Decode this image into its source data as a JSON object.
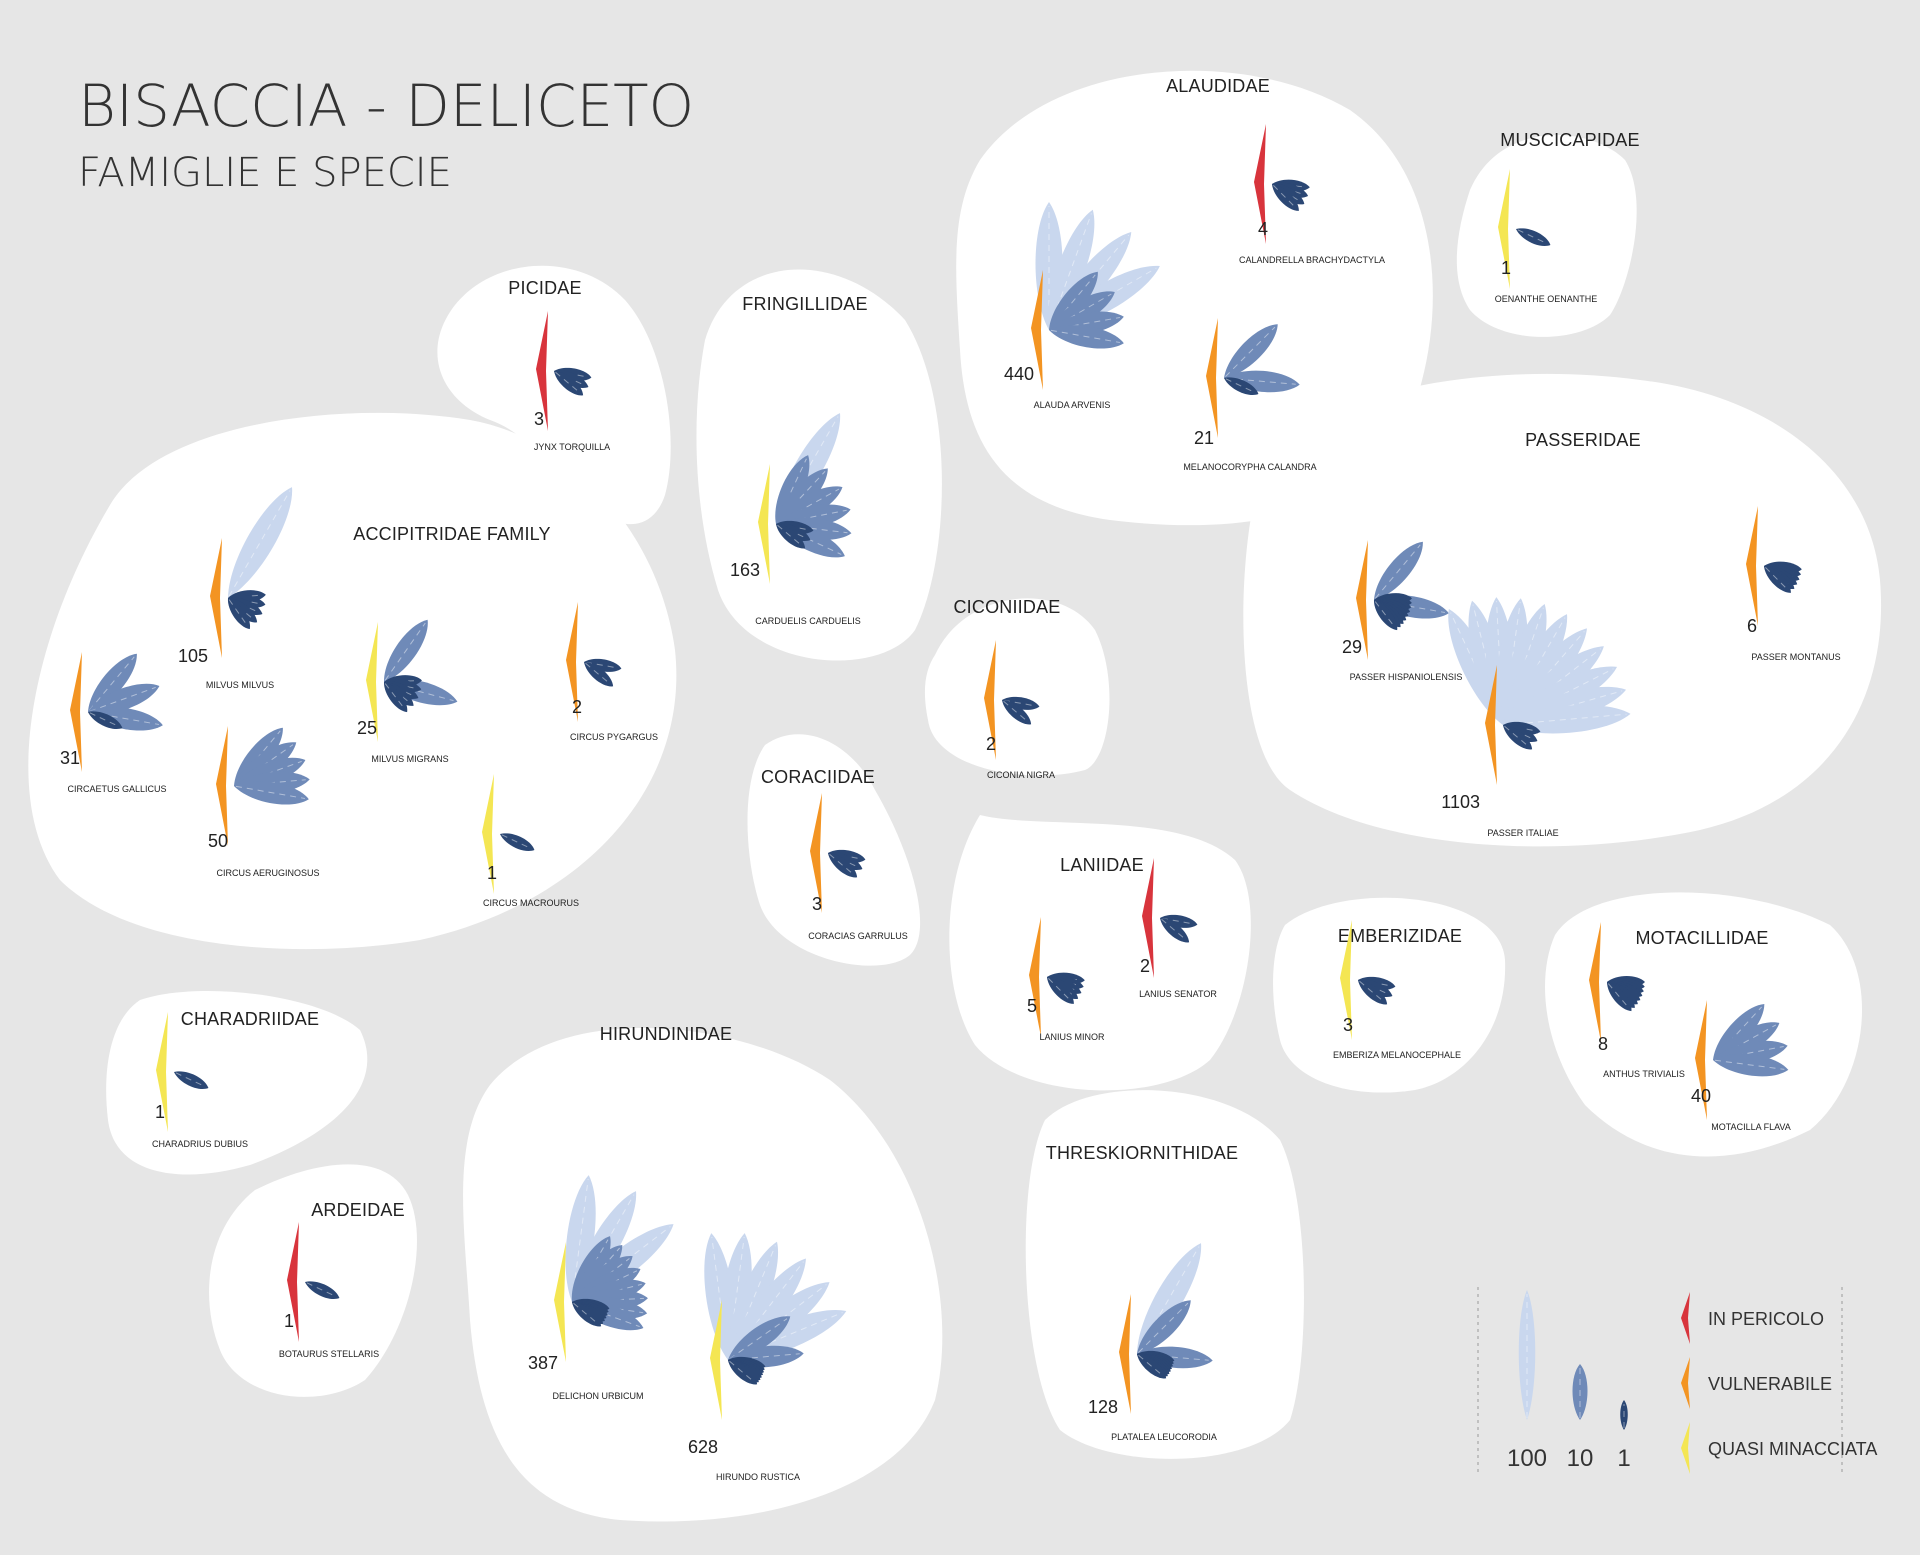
{
  "title": "BISACCIA - DELICETO",
  "subtitle": "FAMIGLIE E SPECIE",
  "colors": {
    "background": "#e6e6e6",
    "blob": "#ffffff",
    "feather_100": "#c9d7ee",
    "feather_10": "#6f8ab8",
    "feather_1": "#2b4774",
    "in_pericolo": "#d8343c",
    "vulnerabile": "#f39422",
    "quasi_minacciata": "#f4e653"
  },
  "families": [
    {
      "name": "ACCIPITRIDAE FAMILY",
      "species": [
        {
          "name": "MILVUS MILVUS",
          "count": "105",
          "status": "vulnerabile"
        },
        {
          "name": "CIRCAETUS GALLICUS",
          "count": "31",
          "status": "vulnerabile"
        },
        {
          "name": "MILVUS MIGRANS",
          "count": "25",
          "status": "quasi_minacciata"
        },
        {
          "name": "CIRCUS PYGARGUS",
          "count": "2",
          "status": "vulnerabile"
        },
        {
          "name": "CIRCUS AERUGINOSUS",
          "count": "50",
          "status": "vulnerabile"
        },
        {
          "name": "CIRCUS MACROURUS",
          "count": "1",
          "status": "quasi_minacciata"
        }
      ]
    },
    {
      "name": "PICIDAE",
      "species": [
        {
          "name": "JYNX TORQUILLA",
          "count": "3",
          "status": "in_pericolo"
        }
      ]
    },
    {
      "name": "FRINGILLIDAE",
      "species": [
        {
          "name": "CARDUELIS CARDUELIS",
          "count": "163",
          "status": "quasi_minacciata"
        }
      ]
    },
    {
      "name": "ALAUDIDAE",
      "species": [
        {
          "name": "ALAUDA ARVENIS",
          "count": "440",
          "status": "vulnerabile"
        },
        {
          "name": "CALANDRELLA BRACHYDACTYLA",
          "count": "4",
          "status": "in_pericolo"
        },
        {
          "name": "MELANOCORYPHA CALANDRA",
          "count": "21",
          "status": "vulnerabile"
        }
      ]
    },
    {
      "name": "MUSCICAPIDAE",
      "species": [
        {
          "name": "OENANTHE OENANTHE",
          "count": "1",
          "status": "quasi_minacciata"
        }
      ]
    },
    {
      "name": "PASSERIDAE",
      "species": [
        {
          "name": "PASSER HISPANIOLENSIS",
          "count": "29",
          "status": "vulnerabile"
        },
        {
          "name": "PASSER ITALIAE",
          "count": "1103",
          "status": "vulnerabile"
        },
        {
          "name": "PASSER MONTANUS",
          "count": "6",
          "status": "vulnerabile"
        }
      ]
    },
    {
      "name": "CICONIIDAE",
      "species": [
        {
          "name": "CICONIA NIGRA",
          "count": "2",
          "status": "vulnerabile"
        }
      ]
    },
    {
      "name": "CORACIIDAE",
      "species": [
        {
          "name": "CORACIAS GARRULUS",
          "count": "3",
          "status": "vulnerabile"
        }
      ]
    },
    {
      "name": "LANIIDAE",
      "species": [
        {
          "name": "LANIUS MINOR",
          "count": "5",
          "status": "vulnerabile"
        },
        {
          "name": "LANIUS SENATOR",
          "count": "2",
          "status": "in_pericolo"
        }
      ]
    },
    {
      "name": "EMBERIZIDAE",
      "species": [
        {
          "name": "EMBERIZA MELANOCEPHALE",
          "count": "3",
          "status": "quasi_minacciata"
        }
      ]
    },
    {
      "name": "MOTACILLIDAE",
      "species": [
        {
          "name": "ANTHUS TRIVIALIS",
          "count": "8",
          "status": "vulnerabile"
        },
        {
          "name": "MOTACILLA FLAVA",
          "count": "40",
          "status": "vulnerabile"
        }
      ]
    },
    {
      "name": "CHARADRIIDAE",
      "species": [
        {
          "name": "CHARADRIUS DUBIUS",
          "count": "1",
          "status": "quasi_minacciata"
        }
      ]
    },
    {
      "name": "HIRUNDINIDAE",
      "species": [
        {
          "name": "DELICHON URBICUM",
          "count": "387",
          "status": "quasi_minacciata"
        },
        {
          "name": "HIRUNDO RUSTICA",
          "count": "628",
          "status": "quasi_minacciata"
        }
      ]
    },
    {
      "name": "THRESKIORNITHIDAE",
      "species": [
        {
          "name": "PLATALEA LEUCORODIA",
          "count": "128",
          "status": "vulnerabile"
        }
      ]
    },
    {
      "name": "ARDEIDAE",
      "species": [
        {
          "name": "BOTAURUS STELLARIS",
          "count": "1",
          "status": "in_pericolo"
        }
      ]
    }
  ],
  "legend": {
    "feathers": [
      {
        "label": "100",
        "value": 100
      },
      {
        "label": "10",
        "value": 10
      },
      {
        "label": "1",
        "value": 1
      }
    ],
    "status": [
      {
        "key": "in_pericolo",
        "label": "IN PERICOLO"
      },
      {
        "key": "vulnerabile",
        "label": "VULNERABILE"
      },
      {
        "key": "quasi_minacciata",
        "label": "QUASI MINACCIATA"
      }
    ]
  }
}
